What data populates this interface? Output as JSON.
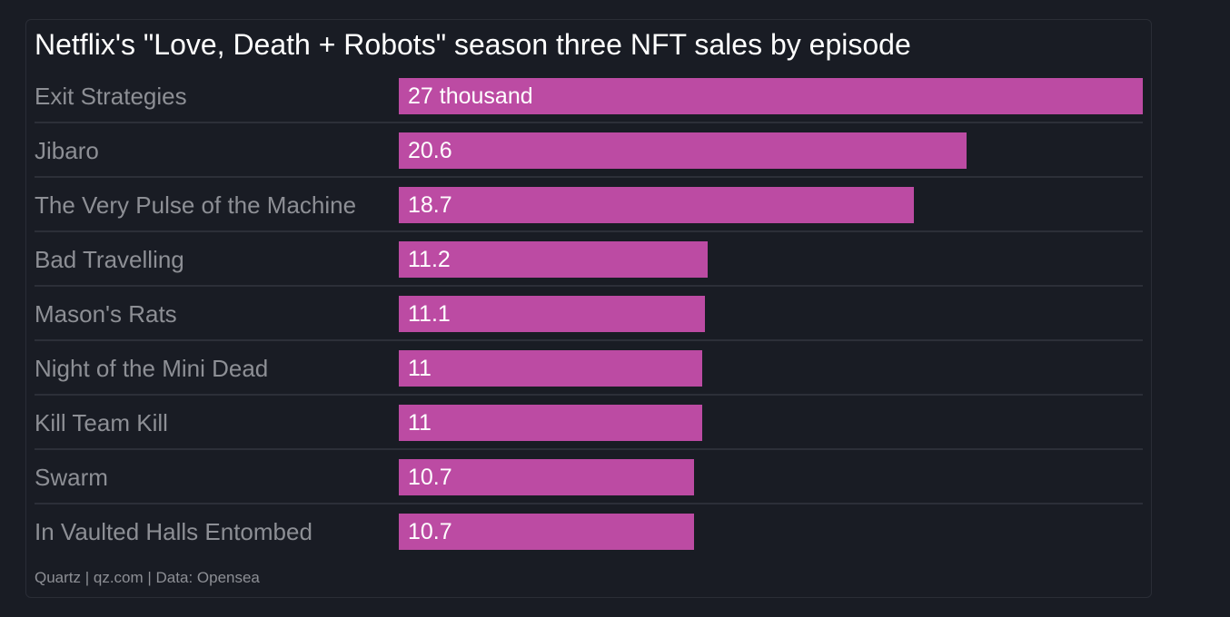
{
  "chart_data": {
    "type": "bar",
    "orientation": "horizontal",
    "title": "Netflix's \"Love, Death + Robots\" season three NFT sales by episode",
    "categories": [
      "Exit Strategies",
      "Jibaro",
      "The Very Pulse of the Machine",
      "Bad Travelling",
      "Mason's Rats",
      "Night of the Mini Dead",
      "Kill Team Kill",
      "Swarm",
      "In Vaulted Halls Entombed"
    ],
    "values": [
      27,
      20.6,
      18.7,
      11.2,
      11.1,
      11,
      11,
      10.7,
      10.7
    ],
    "data_labels": [
      "27 thousand",
      "20.6",
      "18.7",
      "11.2",
      "11.1",
      "11",
      "11",
      "10.7",
      "10.7"
    ],
    "xlim": [
      0,
      27
    ],
    "grid": false,
    "bar_color": "#bc4ba3",
    "source": "Quartz | qz.com | Data: Opensea"
  },
  "colors": {
    "background": "#191c24",
    "bar": "#bc4ba3",
    "title": "#ffffff",
    "muted_text": "#8d8f95"
  }
}
